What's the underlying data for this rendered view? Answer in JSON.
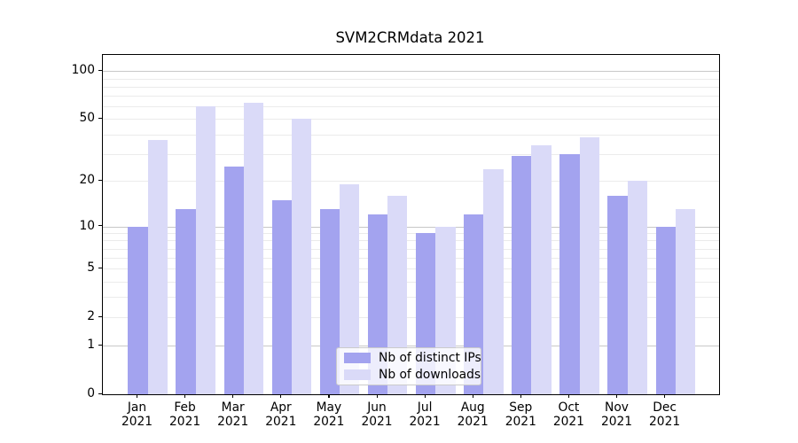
{
  "chart_data": {
    "type": "bar",
    "title": "SVM2CRMdata 2021",
    "categories": [
      "Jan 2021",
      "Feb 2021",
      "Mar 2021",
      "Apr 2021",
      "May 2021",
      "Jun 2021",
      "Jul 2021",
      "Aug 2021",
      "Sep 2021",
      "Oct 2021",
      "Nov 2021",
      "Dec 2021"
    ],
    "series": [
      {
        "name": "Nb of distinct IPs",
        "color": "#a3a3ef",
        "values": [
          10,
          13,
          25,
          15,
          13,
          12,
          9,
          12,
          29,
          30,
          16,
          10
        ]
      },
      {
        "name": "Nb of downloads",
        "color": "#dadaf8",
        "values": [
          37,
          60,
          63,
          50,
          19,
          16,
          10,
          24,
          34,
          38,
          20,
          13
        ]
      }
    ],
    "xlabel": "",
    "ylabel": "",
    "yticks": [
      0,
      1,
      2,
      5,
      10,
      20,
      50,
      100
    ],
    "ylim": [
      0,
      120
    ],
    "yscale": "log1p",
    "grid": "major+minor horizontal",
    "legend_position": "lower center",
    "colors": {
      "major_grid": "#c8c8c8",
      "minor_grid": "#ebebeb",
      "spine": "#000000",
      "legend_border": "#cbcbcb"
    }
  }
}
